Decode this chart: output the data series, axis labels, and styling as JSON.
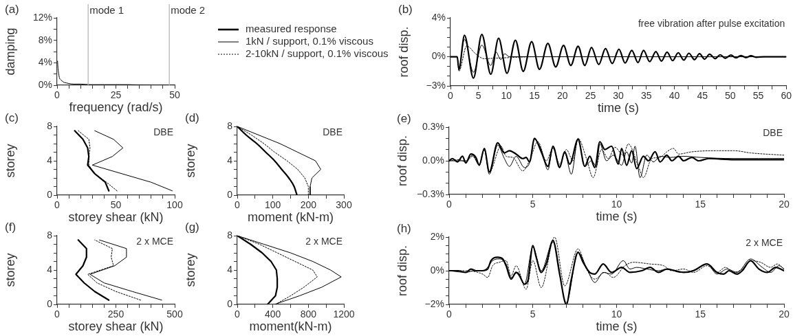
{
  "chart_data": [
    {
      "type": "line",
      "title": "(a)",
      "xlabel": "frequency (rad/s)",
      "ylabel": "damping",
      "xlim": [
        0,
        50
      ],
      "ylim": [
        0,
        12
      ],
      "xticks": [
        0,
        {
          "value": 5,
          "label": null
        },
        {
          "value": 10,
          "label": null
        },
        {
          "value": 15,
          "label": null
        },
        {
          "value": 20,
          "label": null
        },
        25,
        {
          "value": 30,
          "label": null
        },
        {
          "value": 35,
          "label": null
        },
        {
          "value": 40,
          "label": null
        },
        {
          "value": 45,
          "label": null
        },
        50
      ],
      "yticks": [
        {
          "value": 0,
          "label": "0%"
        },
        {
          "value": 2,
          "label": null
        },
        {
          "value": 4,
          "label": "4%"
        },
        {
          "value": 6,
          "label": null
        },
        {
          "value": 8,
          "label": "8%"
        },
        {
          "value": 10,
          "label": null
        },
        {
          "value": 12,
          "label": "12%"
        }
      ],
      "ref_lines": [
        {
          "axis": "x",
          "value": 13.2,
          "label": "mode 1",
          "color": "#b0b0b0"
        },
        {
          "axis": "x",
          "value": 47.7,
          "label": "mode 2",
          "color": "#b0b0b0"
        }
      ],
      "series": [
        {
          "color": "#000000",
          "line_style": "solid",
          "x": [
            0.2,
            0.4,
            0.7,
            1,
            1.5,
            2,
            3,
            4,
            5,
            7,
            10,
            14,
            20,
            30,
            40,
            50
          ],
          "values": [
            4.3,
            3,
            2,
            1.3,
            1,
            0.8,
            0.5,
            0.4,
            0.3,
            0.2,
            0.2,
            0.1,
            0.1,
            0.1,
            0,
            0
          ]
        }
      ]
    },
    {
      "type": "line",
      "title": "(b)",
      "xlabel": "time (s)",
      "ylabel": "roof disp.",
      "xlim": [
        0,
        60
      ],
      "ylim": [
        -3,
        4
      ],
      "legend": "left",
      "annotations": [
        "free vibration after pulse excitation"
      ],
      "xticks": [
        0,
        {
          "value": 2.5,
          "label": null
        },
        5,
        {
          "value": 7.5,
          "label": null
        },
        10,
        {
          "value": 12.5,
          "label": null
        },
        15,
        {
          "value": 17.5,
          "label": null
        },
        20,
        {
          "value": 22.5,
          "label": null
        },
        25,
        {
          "value": 27.5,
          "label": null
        },
        30,
        {
          "value": 32.5,
          "label": null
        },
        35,
        {
          "value": 37.5,
          "label": null
        },
        40,
        {
          "value": 42.5,
          "label": null
        },
        45,
        {
          "value": 47.5,
          "label": null
        },
        50,
        {
          "value": 52.5,
          "label": null
        },
        55,
        {
          "value": 57.5,
          "label": null
        },
        60
      ],
      "yticks": [
        {
          "value": -3,
          "label": "−3%"
        },
        {
          "value": -2,
          "label": null
        },
        {
          "value": -1,
          "label": null
        },
        {
          "value": 0,
          "label": "0%"
        },
        {
          "value": 1,
          "label": null
        },
        {
          "value": 2,
          "label": null
        },
        {
          "value": 3,
          "label": null
        },
        {
          "value": 4,
          "label": "4%"
        }
      ],
      "series": [
        {
          "name": "measured response",
          "color": "#000000",
          "line_style": "solid",
          "x": [
            0,
            1.2,
            1.5,
            2.5,
            4.1,
            5.6,
            7.2,
            8.6,
            10.1,
            11.6,
            13.0,
            14.5,
            15.9,
            17.4,
            18.8,
            20.2,
            21.5,
            22.8,
            24.0,
            25.2,
            26.5,
            27.7,
            28.9,
            30.1,
            31.2,
            32.4,
            33.5,
            34.5,
            35.6,
            36.7,
            37.7,
            38.7,
            39.7,
            40.7,
            41.7,
            42.6,
            43.6,
            44.5,
            45.4,
            46.3,
            47.3,
            48.2,
            49.1,
            50.1,
            51.0,
            51.9,
            52.8,
            53.7,
            54.6,
            56,
            60
          ],
          "values": [
            0,
            0,
            -1.3,
            2.2,
            -2.2,
            2.3,
            -1.8,
            1.9,
            -1.7,
            1.7,
            -1.5,
            1.55,
            -1.3,
            1.37,
            -1.05,
            1.16,
            -0.9,
            1.08,
            -0.9,
            0.95,
            -0.8,
            0.85,
            -0.7,
            0.78,
            -0.65,
            0.65,
            -0.6,
            0.65,
            -0.5,
            0.52,
            -0.45,
            0.47,
            -0.4,
            0.41,
            -0.35,
            0.36,
            -0.3,
            0.31,
            -0.25,
            0.26,
            -0.2,
            0.2,
            -0.16,
            0.18,
            -0.12,
            0.13,
            -0.09,
            0.1,
            -0.05,
            0,
            0
          ]
        },
        {
          "name": "1kN / support, 0.1% viscous",
          "color": "#000000",
          "line_style": "solid",
          "x": [
            0,
            1.2,
            1.5,
            2.5,
            4.1,
            5.6,
            7.2,
            8.1,
            9.0,
            9.7,
            10.5,
            60
          ],
          "values": [
            0,
            0,
            -1.2,
            1.8,
            -1.6,
            1.2,
            -0.9,
            0.5,
            -0.3,
            0.3,
            0,
            0
          ]
        },
        {
          "name": "2-10kN / support, 0.1% viscous",
          "color": "#000000",
          "line_style": "dotted",
          "x": [
            0,
            1.2,
            1.5,
            2.9,
            4.5,
            6,
            8,
            10,
            12,
            15,
            60
          ],
          "values": [
            0,
            0,
            -1.5,
            1.1,
            0.3,
            -0.2,
            -0.15,
            -0.1,
            -0.05,
            0,
            0
          ]
        }
      ]
    },
    {
      "type": "line",
      "title": "(c)",
      "xlabel": "storey shear (kN)",
      "ylabel": "storey",
      "xlim": [
        0,
        100
      ],
      "ylim": [
        0,
        8
      ],
      "annotations": [
        "DBE"
      ],
      "xticks": [
        0,
        {
          "value": 10,
          "label": null
        },
        {
          "value": 20,
          "label": null
        },
        {
          "value": 30,
          "label": null
        },
        {
          "value": 40,
          "label": null
        },
        50,
        {
          "value": 60,
          "label": null
        },
        {
          "value": 70,
          "label": null
        },
        {
          "value": 80,
          "label": null
        },
        {
          "value": 90,
          "label": null
        },
        100
      ],
      "yticks": [
        0,
        {
          "value": 1,
          "label": null
        },
        {
          "value": 2,
          "label": null
        },
        {
          "value": 3,
          "label": null
        },
        4,
        {
          "value": 5,
          "label": null
        },
        {
          "value": 6,
          "label": null
        },
        {
          "value": 7,
          "label": null
        },
        8
      ],
      "series": [
        {
          "color": "#000000",
          "line_style": "solid",
          "x": [
            44,
            41,
            32,
            26,
            27,
            26,
            22,
            15
          ],
          "values": [
            0.5,
            1.5,
            2.5,
            3.5,
            4.5,
            5.5,
            6.5,
            7.5
          ]
        },
        {
          "color": "#000000",
          "line_style": "solid",
          "x": [
            98,
            80,
            55,
            30,
            47,
            56,
            48,
            32
          ],
          "values": [
            0.5,
            1.5,
            2.5,
            3.5,
            4.5,
            5.5,
            6.5,
            7.5
          ]
        },
        {
          "color": "#000000",
          "line_style": "dotted",
          "x": [
            51,
            42,
            32,
            27,
            27,
            28,
            27,
            18
          ],
          "values": [
            0.5,
            1.5,
            2.5,
            3.5,
            4.5,
            5.5,
            6.5,
            7.5
          ]
        }
      ]
    },
    {
      "type": "line",
      "title": "(d)",
      "xlabel": "moment (kN-m)",
      "ylabel": "storey",
      "xlim": [
        0,
        300
      ],
      "ylim": [
        0,
        8
      ],
      "annotations": [
        "DBE"
      ],
      "xticks": [
        0,
        {
          "value": 50,
          "label": null
        },
        100,
        {
          "value": 150,
          "label": null
        },
        200,
        {
          "value": 250,
          "label": null
        },
        300
      ],
      "yticks": [
        0,
        {
          "value": 1,
          "label": null
        },
        {
          "value": 2,
          "label": null
        },
        {
          "value": 3,
          "label": null
        },
        4,
        {
          "value": 5,
          "label": null
        },
        {
          "value": 6,
          "label": null
        },
        {
          "value": 7,
          "label": null
        },
        8
      ],
      "series": [
        {
          "color": "#000000",
          "line_style": "solid",
          "x": [
            0,
            25,
            55,
            80,
            105,
            125,
            145,
            160,
            168
          ],
          "values": [
            8,
            7,
            6,
            5,
            4,
            3,
            2,
            1,
            0
          ]
        },
        {
          "color": "#000000",
          "line_style": "solid",
          "x": [
            0,
            60,
            120,
            170,
            220,
            235,
            210,
            205,
            205
          ],
          "values": [
            8,
            7,
            6,
            5,
            4,
            3,
            2,
            1,
            0
          ]
        },
        {
          "color": "#000000",
          "line_style": "dotted",
          "x": [
            0,
            40,
            75,
            105,
            140,
            170,
            190,
            200,
            200
          ],
          "values": [
            8,
            7,
            6,
            5,
            4,
            3,
            2,
            1,
            0
          ]
        }
      ]
    },
    {
      "type": "line",
      "title": "(e)",
      "xlabel": "time (s)",
      "ylabel": "roof disp.",
      "xlim": [
        0,
        20
      ],
      "ylim": [
        -0.3,
        0.3
      ],
      "annotations": [
        "DBE"
      ],
      "xticks": [
        0,
        {
          "value": 1,
          "label": null
        },
        {
          "value": 2,
          "label": null
        },
        {
          "value": 3,
          "label": null
        },
        {
          "value": 4,
          "label": null
        },
        5,
        {
          "value": 6,
          "label": null
        },
        {
          "value": 7,
          "label": null
        },
        {
          "value": 8,
          "label": null
        },
        {
          "value": 9,
          "label": null
        },
        10,
        {
          "value": 11,
          "label": null
        },
        {
          "value": 12,
          "label": null
        },
        {
          "value": 13,
          "label": null
        },
        {
          "value": 14,
          "label": null
        },
        15,
        {
          "value": 16,
          "label": null
        },
        {
          "value": 17,
          "label": null
        },
        {
          "value": 18,
          "label": null
        },
        {
          "value": 19,
          "label": null
        },
        20
      ],
      "yticks": [
        {
          "value": -0.3,
          "label": "−0.3%"
        },
        {
          "value": -0.2,
          "label": null
        },
        {
          "value": -0.1,
          "label": null
        },
        {
          "value": 0,
          "label": "0.0%"
        },
        {
          "value": 0.1,
          "label": null
        },
        {
          "value": 0.2,
          "label": null
        },
        {
          "value": 0.3,
          "label": "0.3%"
        }
      ],
      "series": [
        {
          "color": "#000000",
          "line_style": "solid",
          "x": [
            0,
            0.2,
            0.5,
            0.8,
            1,
            1.3,
            1.6,
            1.8,
            2.1,
            2.4,
            2.9,
            3.3,
            3.6,
            4,
            4.4,
            4.6,
            4.8,
            5.1,
            5.5,
            5.9,
            6.2,
            6.6,
            6.9,
            7.2,
            7.7,
            8.1,
            8.4,
            8.7,
            9,
            9.3,
            9.7,
            10.1,
            10.3,
            10.6,
            10.9,
            11.2,
            11.6,
            11.9,
            12.3,
            12.6,
            13,
            13.3,
            13.7,
            14,
            14.5,
            14.9,
            15.5,
            17,
            20
          ],
          "values": [
            0,
            0.02,
            -0.01,
            0.04,
            -0.02,
            0.06,
            0.03,
            -0.04,
            0.11,
            -0.1,
            0.16,
            0.07,
            0.09,
            0.06,
            0.02,
            0.03,
            -0.01,
            0.2,
            0.08,
            -0.05,
            0.13,
            -0.06,
            0.08,
            -0.03,
            0.19,
            -0.05,
            0.04,
            -0.06,
            0.17,
            0.1,
            0.13,
            -0.03,
            0.11,
            -0.04,
            0.09,
            -0.07,
            0.04,
            0,
            0.08,
            -0.01,
            0.05,
            0,
            0.04,
            0,
            0.03,
            0,
            0.02,
            0.01,
            0.01
          ]
        },
        {
          "color": "#000000",
          "line_style": "solid",
          "x": [
            0,
            0.5,
            1,
            1.4,
            1.8,
            2.1,
            2.4,
            2.9,
            3.3,
            3.6,
            4,
            4.5,
            4.8,
            5.1,
            5.5,
            5.9,
            6.2,
            6.6,
            6.9,
            7.3,
            7.7,
            8.1,
            8.5,
            8.8,
            9,
            9.4,
            9.8,
            10.3,
            10.6,
            10.9,
            11.1,
            11.4,
            11.8,
            12.2,
            12.6,
            13.2,
            14,
            15,
            17,
            20
          ],
          "values": [
            0,
            0,
            0,
            0.05,
            -0.04,
            0.1,
            -0.12,
            0.14,
            0.02,
            -0.05,
            0.04,
            -0.06,
            -0.02,
            0.19,
            0.1,
            -0.08,
            0.12,
            -0.05,
            0.07,
            -0.12,
            0.2,
            -0.05,
            0,
            -0.05,
            0.15,
            0,
            0.05,
            -0.04,
            0.08,
            -0.02,
            0.13,
            -0.15,
            0.05,
            -0.01,
            0.04,
            0.03,
            0.04,
            0.03,
            0.02,
            0.02
          ]
        },
        {
          "color": "#000000",
          "line_style": "dotted",
          "x": [
            0,
            0.6,
            1,
            1.4,
            1.8,
            2.1,
            2.4,
            3.1,
            3.4,
            3.8,
            4.4,
            4.8,
            5.3,
            5.8,
            6.2,
            6.6,
            7,
            7.4,
            7.7,
            8.2,
            8.6,
            9.1,
            9.5,
            9.9,
            10.4,
            10.7,
            11.3,
            11.6,
            12.1,
            12.6,
            13,
            13.4,
            13.7,
            14.5,
            16,
            17,
            18,
            20
          ],
          "values": [
            0,
            0.01,
            -0.01,
            0.04,
            -0.03,
            0.1,
            -0.1,
            0.13,
            0.04,
            0.03,
            -0.09,
            0,
            0.17,
            0,
            0.11,
            -0.03,
            0.1,
            0,
            0.2,
            0.02,
            -0.15,
            0.1,
            0.02,
            0.12,
            0.05,
            0.15,
            -0.05,
            -0.15,
            0.02,
            0.03,
            0.08,
            0.11,
            0.06,
            0.08,
            0.09,
            0.09,
            0.07,
            0.05
          ]
        }
      ]
    },
    {
      "type": "line",
      "title": "(f)",
      "xlabel": "storey shear (kN)",
      "ylabel": "storey",
      "xlim": [
        0,
        500
      ],
      "ylim": [
        0,
        8
      ],
      "annotations": [
        "2 x MCE"
      ],
      "xticks": [
        0,
        {
          "value": 50,
          "label": null
        },
        {
          "value": 100,
          "label": null
        },
        {
          "value": 150,
          "label": null
        },
        {
          "value": 200,
          "label": null
        },
        250,
        {
          "value": 300,
          "label": null
        },
        {
          "value": 350,
          "label": null
        },
        {
          "value": 400,
          "label": null
        },
        {
          "value": 450,
          "label": null
        },
        500
      ],
      "yticks": [
        0,
        {
          "value": 1,
          "label": null
        },
        {
          "value": 2,
          "label": null
        },
        {
          "value": 3,
          "label": null
        },
        4,
        {
          "value": 5,
          "label": null
        },
        {
          "value": 6,
          "label": null
        },
        {
          "value": 7,
          "label": null
        },
        8
      ],
      "series": [
        {
          "color": "#000000",
          "line_style": "solid",
          "x": [
            220,
            160,
            115,
            80,
            110,
            125,
            125,
            90
          ],
          "values": [
            0.5,
            1.5,
            2.5,
            3.5,
            4.5,
            5.5,
            6.5,
            7.5
          ]
        },
        {
          "color": "#000000",
          "line_style": "solid",
          "x": [
            445,
            320,
            200,
            140,
            245,
            295,
            295,
            180
          ],
          "values": [
            0.5,
            1.5,
            2.5,
            3.5,
            4.5,
            5.5,
            6.5,
            7.5
          ]
        },
        {
          "color": "#000000",
          "line_style": "dotted",
          "x": [
            355,
            250,
            170,
            130,
            240,
            230,
            235,
            160
          ],
          "values": [
            0.5,
            1.5,
            2.5,
            3.5,
            4.5,
            5.5,
            6.5,
            7.5
          ]
        }
      ]
    },
    {
      "type": "line",
      "title": "(g)",
      "xlabel": "moment(kN-m)",
      "ylabel": "storey",
      "xlim": [
        0,
        1200
      ],
      "ylim": [
        0,
        8
      ],
      "annotations": [
        "2 x MCE"
      ],
      "xticks": [
        0,
        {
          "value": 200,
          "label": null
        },
        400,
        {
          "value": 600,
          "label": null
        },
        800,
        {
          "value": 1000,
          "label": null
        },
        1200
      ],
      "yticks": [
        0,
        {
          "value": 1,
          "label": null
        },
        {
          "value": 2,
          "label": null
        },
        {
          "value": 3,
          "label": null
        },
        4,
        {
          "value": 5,
          "label": null
        },
        {
          "value": 6,
          "label": null
        },
        {
          "value": 7,
          "label": null
        },
        8
      ],
      "series": [
        {
          "color": "#000000",
          "line_style": "solid",
          "x": [
            0,
            150,
            280,
            380,
            440,
            450,
            450,
            430,
            340
          ],
          "values": [
            8,
            7,
            6,
            5,
            4,
            3,
            2,
            1,
            0
          ]
        },
        {
          "color": "#000000",
          "line_style": "solid",
          "x": [
            0,
            300,
            600,
            850,
            1050,
            1170,
            950,
            700,
            420
          ],
          "values": [
            8,
            7,
            6,
            5,
            4,
            3.2,
            2,
            1,
            0
          ]
        },
        {
          "color": "#000000",
          "line_style": "dotted",
          "x": [
            0,
            250,
            450,
            650,
            850,
            900,
            750,
            600,
            430
          ],
          "values": [
            8,
            7,
            6,
            5,
            4,
            3.2,
            2,
            1,
            0
          ]
        }
      ]
    },
    {
      "type": "line",
      "title": "(h)",
      "xlabel": "time (s)",
      "ylabel": "roof disp.",
      "xlim": [
        0,
        20
      ],
      "ylim": [
        -2,
        2
      ],
      "annotations": [
        "2 x MCE"
      ],
      "xticks": [
        0,
        {
          "value": 1,
          "label": null
        },
        {
          "value": 2,
          "label": null
        },
        {
          "value": 3,
          "label": null
        },
        {
          "value": 4,
          "label": null
        },
        5,
        {
          "value": 6,
          "label": null
        },
        {
          "value": 7,
          "label": null
        },
        {
          "value": 8,
          "label": null
        },
        {
          "value": 9,
          "label": null
        },
        10,
        {
          "value": 11,
          "label": null
        },
        {
          "value": 12,
          "label": null
        },
        {
          "value": 13,
          "label": null
        },
        {
          "value": 14,
          "label": null
        },
        15,
        {
          "value": 16,
          "label": null
        },
        {
          "value": 17,
          "label": null
        },
        {
          "value": 18,
          "label": null
        },
        {
          "value": 19,
          "label": null
        },
        20
      ],
      "yticks": [
        {
          "value": -2,
          "label": "−2%"
        },
        {
          "value": -1.5,
          "label": null
        },
        {
          "value": -1,
          "label": null
        },
        {
          "value": -0.5,
          "label": null
        },
        {
          "value": 0,
          "label": "0%"
        },
        {
          "value": 0.5,
          "label": null
        },
        {
          "value": 1,
          "label": null
        },
        {
          "value": 1.5,
          "label": null
        },
        {
          "value": 2,
          "label": "2%"
        }
      ],
      "series": [
        {
          "color": "#000000",
          "line_style": "solid",
          "x": [
            0,
            0.5,
            1,
            1.3,
            1.6,
            2,
            2.3,
            2.5,
            2.9,
            3.2,
            3.4,
            3.7,
            4,
            4.2,
            4.5,
            4.7,
            5,
            5.2,
            5.5,
            5.8,
            6.2,
            6.6,
            7,
            7.3,
            7.7,
            8,
            8.4,
            8.7,
            9.2,
            9.7,
            10.3,
            10.8,
            11.5,
            12,
            12.5,
            13,
            13.5,
            14,
            14.6,
            15.4,
            16,
            16.4,
            16.7,
            17.2,
            17.5,
            18,
            18.5,
            19,
            19.5,
            20
          ],
          "values": [
            0,
            0,
            -0.1,
            0.1,
            0,
            0,
            0.1,
            0.6,
            0.8,
            0.7,
            0.3,
            -0.5,
            -0.1,
            -0.3,
            -0.8,
            -0.6,
            1.5,
            0.8,
            -0.1,
            0.4,
            1.8,
            -0.2,
            -2,
            -0.5,
            1.1,
            0.5,
            -0.1,
            -0.2,
            0.4,
            -0.1,
            0.2,
            -0.1,
            0,
            0.2,
            -0.1,
            0.1,
            0,
            -0.1,
            0,
            0.4,
            -0.1,
            -0.2,
            0,
            -0.2,
            0,
            0.6,
            0.1,
            -0.1,
            0.2,
            0
          ]
        },
        {
          "color": "#000000",
          "line_style": "solid",
          "x": [
            0,
            1,
            1.5,
            2,
            2.3,
            2.6,
            3,
            3.4,
            3.7,
            4.1,
            4.5,
            5,
            5.5,
            6.2,
            7,
            7.7,
            8.2,
            8.7,
            9.2,
            9.7,
            10.4,
            10.8,
            11.2,
            11.8,
            12.5,
            13,
            13.8,
            14.5,
            15.4,
            16,
            16.6,
            17.2,
            18,
            18.7,
            19.2,
            19.7,
            20
          ],
          "values": [
            0,
            -0.1,
            0,
            0,
            0.2,
            0.6,
            0.7,
            0.4,
            -0.4,
            -0.1,
            -0.8,
            1.4,
            0,
            1.7,
            -1.9,
            1.1,
            0.2,
            -0.7,
            -0.1,
            -0.2,
            0.6,
            0.1,
            0.2,
            0.1,
            0,
            0.1,
            -0.1,
            0,
            0.4,
            -0.2,
            0.1,
            -0.1,
            0.7,
            0.2,
            -0.1,
            0.3,
            0.1
          ]
        },
        {
          "color": "#000000",
          "line_style": "dotted",
          "x": [
            0,
            1,
            2,
            2.3,
            2.6,
            3,
            3.4,
            3.7,
            4,
            4.6,
            5,
            5.5,
            6.3,
            6.9,
            7.7,
            8.2,
            8.7,
            9.3,
            9.8,
            10.5,
            11,
            12,
            12.8,
            13.3,
            14,
            14.6,
            15.4,
            16,
            16.5,
            17,
            17.5,
            18,
            18.6,
            19.2,
            19.6,
            20
          ],
          "values": [
            0,
            0,
            -0.2,
            -0.4,
            0.3,
            0.5,
            0.6,
            -0.3,
            0.3,
            -1.1,
            0.6,
            -1,
            2,
            -0.9,
            1.3,
            0.1,
            -0.5,
            -0.1,
            -0.4,
            0.3,
            0.5,
            0.4,
            0.3,
            0,
            0.1,
            -0.1,
            0.3,
            -0.1,
            0.2,
            -0.1,
            0.1,
            0.6,
            0.5,
            0.2,
            0.4,
            0.1
          ]
        }
      ]
    }
  ]
}
